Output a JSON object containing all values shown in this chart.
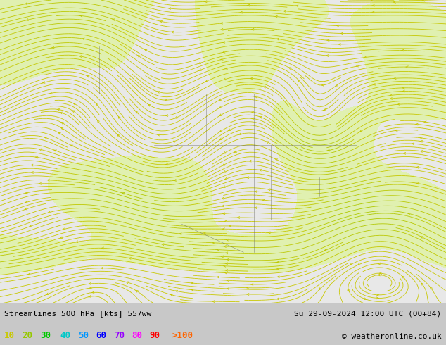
{
  "title_left": "Streamlines 500 hPa [kts] 557ww",
  "title_right": "Su 29-09-2024 12:00 UTC (00+84)",
  "copyright": "© weatheronline.co.uk",
  "legend_values": [
    10,
    20,
    30,
    40,
    50,
    60,
    70,
    80,
    90
  ],
  "legend_label_gt100": ">100",
  "legend_colors": [
    "#c8c800",
    "#96c800",
    "#00c800",
    "#00c8c8",
    "#0096ff",
    "#0000ff",
    "#9600ff",
    "#ff00ff",
    "#ff0000",
    "#ff6400"
  ],
  "speed_levels": [
    0,
    10,
    20,
    30,
    40,
    50,
    60,
    70,
    80,
    90,
    100,
    150
  ],
  "speed_colors_fill": [
    "#e8e8e8",
    "#e0f0b0",
    "#c8ec80",
    "#a0e050",
    "#60d060",
    "#00d0c0",
    "#0090ff",
    "#0000e0",
    "#9000e0",
    "#e000e0",
    "#e00000",
    "#ff6400"
  ],
  "background_color": "#c8c8c8",
  "ocean_color": "#e8e8e8",
  "land_color": "#e0eecc",
  "font_family": "monospace",
  "bottom_text_color": "#000000",
  "fig_width": 6.34,
  "fig_height": 4.9,
  "dpi": 100
}
